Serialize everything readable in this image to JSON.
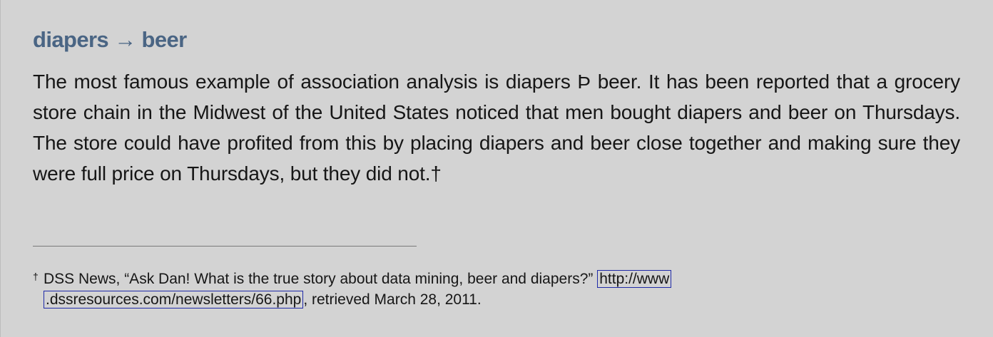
{
  "sidebar": {
    "heading": "diapers → beer",
    "paragraph": "The most famous example of association analysis is diapers Þ beer. It has been reported that a grocery store chain in the Midwest of the United States noticed that men bought diapers and beer on Thursdays. The store could have profited from this by placing diapers and beer close together and making sure they were full price on Thursdays, but they did not.†"
  },
  "footnote": {
    "marker": "†",
    "text_before_link": "DSS News, “Ask Dan! What is the true story about data mining, beer and diapers?”",
    "link_part1": "http://www",
    "link_part2": ".dssresources.com/newsletters/66.php",
    "text_after_link": ", retrieved March 28, 2011."
  }
}
